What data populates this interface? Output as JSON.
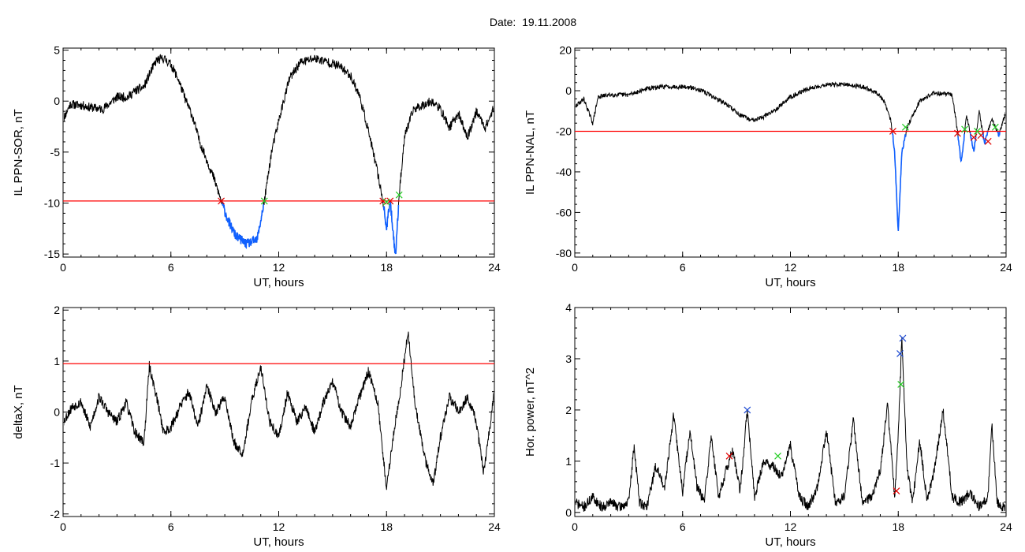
{
  "title": "Date:  19.11.2008",
  "chart_data": [
    {
      "type": "line",
      "xlabel": "UT, hours",
      "ylabel": "IL PPN-SOR, nT",
      "xlim": [
        0,
        24
      ],
      "ylim": [
        -15.3,
        5.2
      ],
      "xticks": [
        0,
        6,
        12,
        18,
        24
      ],
      "yticks": [
        5,
        0,
        -5,
        -10,
        -15
      ],
      "threshold": -9.8,
      "key": [
        [
          0,
          -1.8
        ],
        [
          0.4,
          -0.3
        ],
        [
          1,
          -0.4
        ],
        [
          1.5,
          -0.6
        ],
        [
          2.2,
          -0.8
        ],
        [
          3,
          0.4
        ],
        [
          3.6,
          0.4
        ],
        [
          4,
          1
        ],
        [
          4.5,
          1.4
        ],
        [
          4.8,
          2.6
        ],
        [
          5.2,
          4
        ],
        [
          5.6,
          4.2
        ],
        [
          6,
          3.6
        ],
        [
          6.4,
          2.2
        ],
        [
          6.8,
          0.2
        ],
        [
          7.2,
          -1.5
        ],
        [
          7.6,
          -4
        ],
        [
          8,
          -5.8
        ],
        [
          8.4,
          -7.6
        ],
        [
          8.8,
          -9.8
        ],
        [
          9.2,
          -11.8
        ],
        [
          9.6,
          -13.2
        ],
        [
          10.2,
          -14
        ],
        [
          10.8,
          -13.6
        ],
        [
          11.2,
          -9.8
        ],
        [
          11.6,
          -5
        ],
        [
          12.1,
          -1.2
        ],
        [
          12.6,
          2.2
        ],
        [
          13.2,
          3.8
        ],
        [
          14,
          4.2
        ],
        [
          14.8,
          3.8
        ],
        [
          15.4,
          3.4
        ],
        [
          16,
          2.5
        ],
        [
          16.5,
          0.5
        ],
        [
          17,
          -3
        ],
        [
          17.5,
          -7
        ],
        [
          17.8,
          -9.8
        ],
        [
          18,
          -12.5
        ],
        [
          18.2,
          -9.8
        ],
        [
          18.5,
          -15.2
        ],
        [
          18.7,
          -9.2
        ],
        [
          19,
          -3.5
        ],
        [
          19.5,
          -0.8
        ],
        [
          20,
          -0.4
        ],
        [
          20.5,
          0
        ],
        [
          21,
          -0.8
        ],
        [
          21.5,
          -2.6
        ],
        [
          22,
          -1.2
        ],
        [
          22.5,
          -3.6
        ],
        [
          23,
          -1
        ],
        [
          23.5,
          -2.6
        ],
        [
          24,
          -0.5
        ]
      ],
      "noise": 0.45,
      "seed": 11,
      "red_marks": [
        [
          8.8,
          -9.8
        ],
        [
          17.8,
          -9.8
        ],
        [
          18.2,
          -9.8
        ]
      ],
      "green_marks": [
        [
          11.2,
          -9.8
        ],
        [
          18.0,
          -9.9
        ],
        [
          18.7,
          -9.2
        ]
      ],
      "blue_marks": []
    },
    {
      "type": "line",
      "xlabel": "UT, hours",
      "ylabel": "IL PPN-NAL, nT",
      "xlim": [
        0,
        24
      ],
      "ylim": [
        -82,
        21
      ],
      "xticks": [
        0,
        6,
        12,
        18,
        24
      ],
      "yticks": [
        20,
        0,
        -20,
        -40,
        -60,
        -80
      ],
      "threshold": -20,
      "key": [
        [
          0,
          -8
        ],
        [
          0.5,
          -4
        ],
        [
          1,
          -16
        ],
        [
          1.3,
          -3
        ],
        [
          2,
          -2
        ],
        [
          3,
          -2
        ],
        [
          4,
          1
        ],
        [
          5,
          2
        ],
        [
          6,
          2
        ],
        [
          6.8,
          1
        ],
        [
          7.5,
          -2
        ],
        [
          8.5,
          -7
        ],
        [
          9.2,
          -12
        ],
        [
          9.8,
          -14.5
        ],
        [
          10.5,
          -13
        ],
        [
          11.2,
          -9
        ],
        [
          12,
          -3
        ],
        [
          13,
          1
        ],
        [
          14,
          3
        ],
        [
          15,
          3
        ],
        [
          16,
          2
        ],
        [
          16.8,
          -1
        ],
        [
          17.2,
          -5
        ],
        [
          17.6,
          -15
        ],
        [
          17.8,
          -30
        ],
        [
          18,
          -70
        ],
        [
          18.2,
          -30
        ],
        [
          18.5,
          -18
        ],
        [
          18.8,
          -12
        ],
        [
          19.2,
          -5
        ],
        [
          20,
          -1
        ],
        [
          21,
          -2
        ],
        [
          21.3,
          -20
        ],
        [
          21.5,
          -36
        ],
        [
          21.8,
          -12
        ],
        [
          22.2,
          -30
        ],
        [
          22.5,
          -10
        ],
        [
          22.8,
          -26
        ],
        [
          23.2,
          -14
        ],
        [
          23.6,
          -22
        ],
        [
          24,
          -10
        ]
      ],
      "noise": 1.1,
      "seed": 29,
      "red_marks": [
        [
          17.7,
          -20
        ],
        [
          21.3,
          -21
        ],
        [
          22.2,
          -23
        ],
        [
          22.6,
          -22
        ],
        [
          23.0,
          -25
        ]
      ],
      "green_marks": [
        [
          18.4,
          -18
        ],
        [
          21.7,
          -19
        ],
        [
          22.4,
          -20
        ],
        [
          23.4,
          -18
        ]
      ],
      "blue_marks": []
    },
    {
      "type": "line",
      "xlabel": "UT, hours",
      "ylabel": "deltaX, nT",
      "xlim": [
        0,
        24
      ],
      "ylim": [
        -2.05,
        2.05
      ],
      "xticks": [
        0,
        6,
        12,
        18,
        24
      ],
      "yticks": [
        2,
        1,
        0,
        -1,
        -2
      ],
      "threshold": 0.95,
      "key": [
        [
          0,
          -0.2
        ],
        [
          0.5,
          0.1
        ],
        [
          1,
          0.2
        ],
        [
          1.5,
          -0.3
        ],
        [
          2,
          0.3
        ],
        [
          2.5,
          0
        ],
        [
          3,
          -0.2
        ],
        [
          3.5,
          0.2
        ],
        [
          4,
          -0.4
        ],
        [
          4.5,
          -0.6
        ],
        [
          4.8,
          0.9
        ],
        [
          5.2,
          0.3
        ],
        [
          5.6,
          -0.4
        ],
        [
          6,
          -0.3
        ],
        [
          6.5,
          0.1
        ],
        [
          7,
          0.4
        ],
        [
          7.5,
          -0.3
        ],
        [
          8,
          0.5
        ],
        [
          8.5,
          0
        ],
        [
          9,
          0.3
        ],
        [
          9.5,
          -0.6
        ],
        [
          10,
          -0.8
        ],
        [
          10.5,
          0.2
        ],
        [
          11,
          0.9
        ],
        [
          11.5,
          -0.2
        ],
        [
          12,
          -0.5
        ],
        [
          12.5,
          0.4
        ],
        [
          13,
          -0.2
        ],
        [
          13.5,
          0.1
        ],
        [
          14,
          -0.4
        ],
        [
          14.5,
          0.2
        ],
        [
          15,
          0.6
        ],
        [
          15.5,
          0
        ],
        [
          16,
          -0.3
        ],
        [
          16.5,
          0.3
        ],
        [
          17,
          0.8
        ],
        [
          17.5,
          0.2
        ],
        [
          18,
          -1.5
        ],
        [
          18.4,
          -0.4
        ],
        [
          18.8,
          0.5
        ],
        [
          19.2,
          1.6
        ],
        [
          19.6,
          0.1
        ],
        [
          20.2,
          -1
        ],
        [
          20.6,
          -1.4
        ],
        [
          21,
          -0.5
        ],
        [
          21.5,
          0.3
        ],
        [
          22,
          0
        ],
        [
          22.5,
          0.3
        ],
        [
          23,
          -0.2
        ],
        [
          23.4,
          -1.2
        ],
        [
          23.7,
          -0.4
        ],
        [
          24,
          0.4
        ]
      ],
      "noise": 0.1,
      "seed": 53,
      "red_marks": [],
      "green_marks": [],
      "blue_marks": []
    },
    {
      "type": "line",
      "xlabel": "UT, hours",
      "ylabel": "Hor. power, nT^2",
      "xlim": [
        0,
        24
      ],
      "ylim": [
        -0.08,
        4.0
      ],
      "xticks": [
        0,
        6,
        12,
        18,
        24
      ],
      "yticks": [
        4,
        3,
        2,
        1,
        0
      ],
      "threshold": null,
      "key": [
        [
          0,
          0.2
        ],
        [
          0.5,
          0.1
        ],
        [
          1,
          0.3
        ],
        [
          1.5,
          0.1
        ],
        [
          2,
          0.2
        ],
        [
          2.5,
          0.1
        ],
        [
          3,
          0.2
        ],
        [
          3.3,
          1.3
        ],
        [
          3.6,
          0.2
        ],
        [
          4,
          0.1
        ],
        [
          4.5,
          0.9
        ],
        [
          5,
          0.5
        ],
        [
          5.5,
          1.9
        ],
        [
          6,
          0.4
        ],
        [
          6.4,
          1.6
        ],
        [
          6.8,
          0.5
        ],
        [
          7.2,
          0.2
        ],
        [
          7.6,
          1.5
        ],
        [
          8,
          0.3
        ],
        [
          8.4,
          0.8
        ],
        [
          8.8,
          1.2
        ],
        [
          9.2,
          0.4
        ],
        [
          9.6,
          2
        ],
        [
          10,
          0.3
        ],
        [
          10.5,
          1
        ],
        [
          11,
          0.9
        ],
        [
          11.5,
          0.7
        ],
        [
          12,
          1.3
        ],
        [
          12.5,
          0.3
        ],
        [
          13,
          0.1
        ],
        [
          13.5,
          0.5
        ],
        [
          14,
          1.6
        ],
        [
          14.5,
          0.2
        ],
        [
          15,
          0.3
        ],
        [
          15.5,
          1.8
        ],
        [
          16,
          0.2
        ],
        [
          16.5,
          0.3
        ],
        [
          17,
          0.8
        ],
        [
          17.4,
          2.1
        ],
        [
          17.8,
          0.3
        ],
        [
          18,
          1.5
        ],
        [
          18.2,
          3.4
        ],
        [
          18.5,
          0.8
        ],
        [
          18.8,
          0.2
        ],
        [
          19.2,
          1.4
        ],
        [
          19.6,
          0.2
        ],
        [
          20,
          0.8
        ],
        [
          20.5,
          2.0
        ],
        [
          21,
          0.3
        ],
        [
          21.5,
          0.2
        ],
        [
          22,
          0.4
        ],
        [
          22.5,
          0.1
        ],
        [
          23,
          0.3
        ],
        [
          23.2,
          1.8
        ],
        [
          23.5,
          0.2
        ],
        [
          24,
          0.05
        ]
      ],
      "noise": 0.1,
      "seed": 71,
      "red_marks": [
        [
          8.6,
          1.1
        ],
        [
          17.9,
          0.42
        ]
      ],
      "green_marks": [
        [
          11.3,
          1.1
        ],
        [
          18.15,
          2.5
        ]
      ],
      "blue_marks": [
        [
          9.6,
          2.0
        ],
        [
          18.1,
          3.1
        ],
        [
          18.25,
          3.4
        ]
      ]
    }
  ],
  "colors": {
    "line": "#000000",
    "threshold": "#ff0000",
    "below_threshold": "#1060ff",
    "mark_red": "#e00000",
    "mark_green": "#22cc22",
    "mark_blue": "#1e4bd2"
  }
}
